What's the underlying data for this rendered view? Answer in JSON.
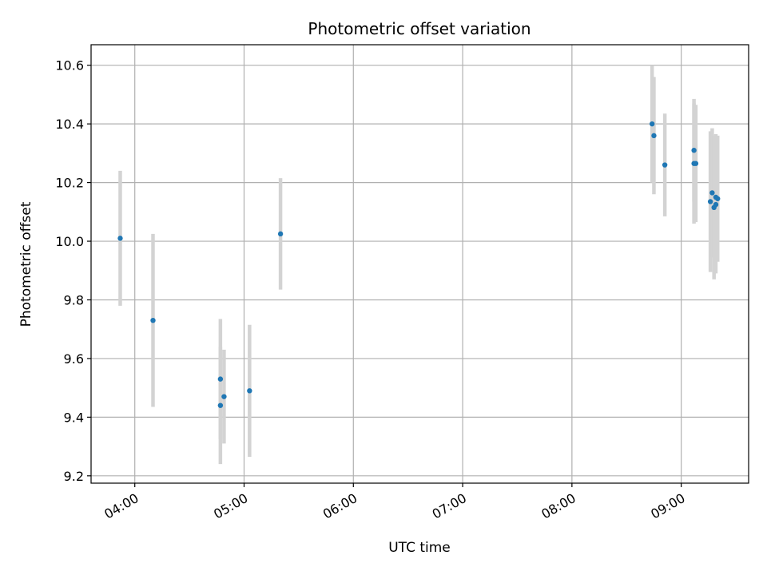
{
  "chart_data": {
    "type": "scatter",
    "title": "Photometric offset variation",
    "xlabel": "UTC time",
    "ylabel": "Photometric offset",
    "x_axis_type": "time",
    "xlim": [
      "03:36",
      "09:37"
    ],
    "ylim": [
      9.175,
      10.67
    ],
    "x_ticks": [
      "04:00",
      "05:00",
      "06:00",
      "07:00",
      "08:00",
      "09:00"
    ],
    "y_ticks": [
      9.2,
      9.4,
      9.6,
      9.8,
      10.0,
      10.2,
      10.4,
      10.6
    ],
    "y_tick_labels": [
      "9.2",
      "9.4",
      "9.6",
      "9.8",
      "10.0",
      "10.2",
      "10.4",
      "10.6"
    ],
    "grid": true,
    "marker_color": "#1f77b4",
    "errorbar_color": "#d3d3d3",
    "points": [
      {
        "t": "03:52",
        "y": 10.01,
        "yerr": 0.23
      },
      {
        "t": "04:10",
        "y": 9.73,
        "yerr": 0.295
      },
      {
        "t": "04:47",
        "y": 9.53,
        "yerr": 0.205
      },
      {
        "t": "04:47",
        "y": 9.44,
        "yerr": 0.2
      },
      {
        "t": "04:49",
        "y": 9.47,
        "yerr": 0.16
      },
      {
        "t": "05:03",
        "y": 9.49,
        "yerr": 0.225
      },
      {
        "t": "05:20",
        "y": 10.025,
        "yerr": 0.19
      },
      {
        "t": "08:44",
        "y": 10.4,
        "yerr": 0.2
      },
      {
        "t": "08:45",
        "y": 10.36,
        "yerr": 0.2
      },
      {
        "t": "08:51",
        "y": 10.26,
        "yerr": 0.175
      },
      {
        "t": "09:07",
        "y": 10.31,
        "yerr": 0.175
      },
      {
        "t": "09:07",
        "y": 10.265,
        "yerr": 0.205
      },
      {
        "t": "09:08",
        "y": 10.265,
        "yerr": 0.2
      },
      {
        "t": "09:16",
        "y": 10.135,
        "yerr": 0.24
      },
      {
        "t": "09:17",
        "y": 10.165,
        "yerr": 0.22
      },
      {
        "t": "09:18",
        "y": 10.115,
        "yerr": 0.245
      },
      {
        "t": "09:19",
        "y": 10.15,
        "yerr": 0.215
      },
      {
        "t": "09:19",
        "y": 10.125,
        "yerr": 0.235
      },
      {
        "t": "09:20",
        "y": 10.145,
        "yerr": 0.215
      }
    ]
  }
}
